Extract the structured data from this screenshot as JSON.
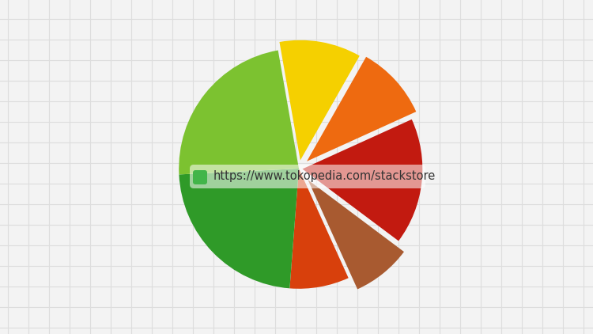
{
  "chart_data": {
    "type": "pie",
    "values": [
      11,
      10,
      17,
      8,
      8,
      23,
      23
    ],
    "colors": [
      "#f5d000",
      "#ee6a10",
      "#c21a10",
      "#a85a30",
      "#d8400c",
      "#2f9a28",
      "#7cc230"
    ],
    "annotations": [
      "https://www.tokopedia.com/stackstore"
    ]
  }
}
